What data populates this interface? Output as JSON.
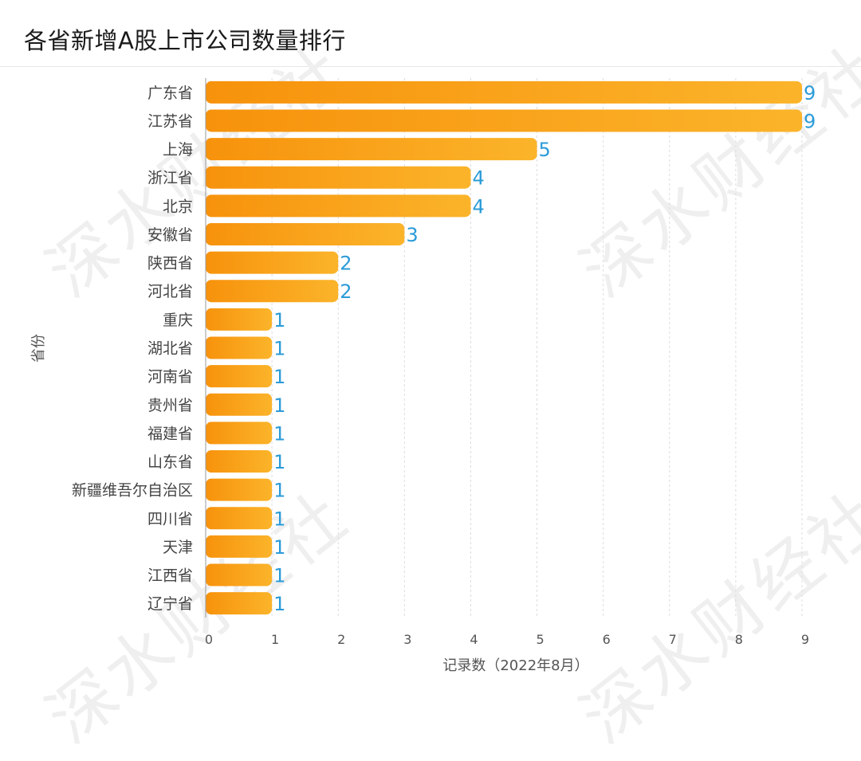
{
  "title": "各省新增A股上市公司数量排行",
  "watermark_text": "深水财经社",
  "colors": {
    "bar_start": "#f7920c",
    "bar_end": "#fbb42a",
    "value_label": "#2b9bd8",
    "axis_text": "#555555",
    "grid": "#dddddd"
  },
  "chart_data": {
    "type": "bar",
    "orientation": "horizontal",
    "categories": [
      "广东省",
      "江苏省",
      "上海",
      "浙江省",
      "北京",
      "安徽省",
      "陕西省",
      "河北省",
      "重庆",
      "湖北省",
      "河南省",
      "贵州省",
      "福建省",
      "山东省",
      "新疆维吾尔自治区",
      "四川省",
      "天津",
      "江西省",
      "辽宁省"
    ],
    "values": [
      9,
      9,
      5,
      4,
      4,
      3,
      2,
      2,
      1,
      1,
      1,
      1,
      1,
      1,
      1,
      1,
      1,
      1,
      1
    ],
    "xlabel": "记录数（2022年8月）",
    "ylabel": "省份",
    "xlim": [
      0,
      9
    ],
    "xticks": [
      "0",
      "1",
      "2",
      "3",
      "4",
      "5",
      "6",
      "7",
      "8",
      "9"
    ],
    "grid": true
  }
}
